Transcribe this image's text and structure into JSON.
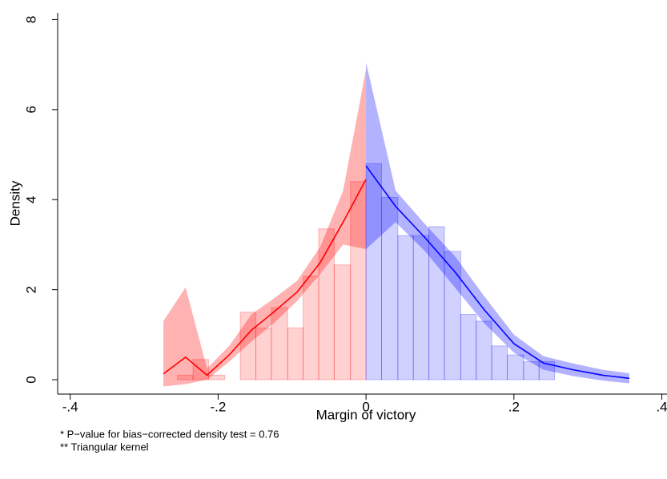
{
  "chart_data": {
    "type": "density",
    "xlabel": "Margin of victory",
    "ylabel": "Density",
    "notes": [
      "* P−value for bias−corrected density test = 0.76",
      "** Triangular kernel"
    ],
    "xlim": [
      -0.417,
      0.407
    ],
    "ylim": [
      -0.32,
      8.15
    ],
    "xticks": [
      {
        "value": -0.4,
        "label": "-.4"
      },
      {
        "value": -0.2,
        "label": "-.2"
      },
      0,
      {
        "value": 0.2,
        "label": ".2"
      },
      {
        "value": 0.4,
        "label": ".4"
      }
    ],
    "yticks": [
      0,
      2,
      4,
      6,
      8
    ],
    "histograms": [
      {
        "color": "#ff0000",
        "bins": [
          -0.255,
          -0.234,
          -0.213,
          -0.191,
          -0.17,
          -0.149,
          -0.128,
          -0.106,
          -0.085,
          -0.064,
          -0.043,
          -0.021,
          0
        ],
        "values": [
          0.1,
          0.45,
          0.1,
          0,
          1.5,
          1.15,
          1.6,
          1.15,
          2.3,
          3.35,
          2.55,
          4.4
        ]
      },
      {
        "color": "#0000ff",
        "bins": [
          0,
          0.021,
          0.043,
          0.064,
          0.085,
          0.106,
          0.128,
          0.149,
          0.17,
          0.191,
          0.213,
          0.234,
          0.255
        ],
        "values": [
          4.8,
          4.05,
          3.2,
          3.2,
          3.4,
          2.85,
          1.45,
          1.3,
          0.75,
          0.55,
          0.4,
          0.4
        ]
      }
    ],
    "fits": [
      {
        "color": "#ff0000",
        "x": [
          -0.274,
          -0.244,
          -0.215,
          -0.185,
          -0.155,
          -0.125,
          -0.093,
          -0.062,
          -0.031,
          0
        ],
        "values": [
          0.13,
          0.5,
          0.1,
          0.55,
          1.1,
          1.5,
          1.95,
          2.6,
          3.5,
          4.45
        ],
        "lower": [
          -0.15,
          -0.1,
          0,
          0.4,
          0.85,
          1.25,
          1.75,
          2.35,
          3.0,
          2.9
        ],
        "upper": [
          1.3,
          2.05,
          0.25,
          0.75,
          1.45,
          1.8,
          2.2,
          2.95,
          4.2,
          6.9
        ]
      },
      {
        "color": "#0000ff",
        "x": [
          0,
          0.04,
          0.08,
          0.12,
          0.16,
          0.2,
          0.24,
          0.28,
          0.32,
          0.356
        ],
        "values": [
          4.75,
          3.85,
          3.15,
          2.4,
          1.55,
          0.8,
          0.37,
          0.22,
          0.1,
          0.03
        ],
        "lower": [
          2.9,
          3.5,
          2.85,
          2.05,
          1.25,
          0.6,
          0.22,
          0.08,
          -0.02,
          -0.08
        ],
        "upper": [
          7.05,
          4.2,
          3.45,
          2.75,
          1.85,
          1.0,
          0.52,
          0.36,
          0.22,
          0.14
        ]
      }
    ]
  }
}
